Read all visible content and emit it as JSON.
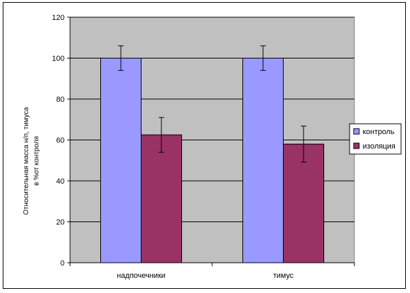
{
  "chart_data": {
    "type": "bar",
    "categories": [
      "надпочечники",
      "тимус"
    ],
    "series": [
      {
        "name": "контроль",
        "values": [
          100,
          100
        ],
        "errors": [
          6,
          6
        ],
        "color": "#9999FF"
      },
      {
        "name": "изоляция",
        "values": [
          62.5,
          58
        ],
        "errors": [
          8.5,
          8.8
        ],
        "color": "#993366"
      }
    ],
    "ylabel_lines": [
      "Относительная масса н/п, тимуса",
      "в %от контроля"
    ],
    "ylim": [
      0,
      120
    ],
    "yticks": [
      0,
      20,
      40,
      60,
      80,
      100,
      120
    ],
    "grid": true,
    "plot_background": "#C0C0C0",
    "legend_position": "right"
  }
}
